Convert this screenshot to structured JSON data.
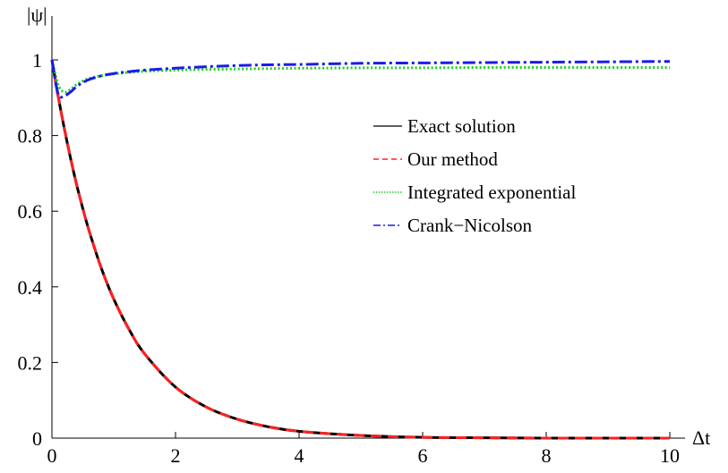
{
  "chart_data": {
    "type": "line",
    "title": "",
    "xlabel": "Δt",
    "ylabel": "|ψ|",
    "xlim": [
      0,
      10
    ],
    "ylim": [
      0,
      1
    ],
    "x_ticks": [
      "0",
      "2",
      "4",
      "6",
      "8",
      "10"
    ],
    "y_ticks": [
      "0",
      "0.2",
      "0.4",
      "0.6",
      "0.8",
      "1"
    ],
    "grid": false,
    "legend_position": "right-center",
    "x": [
      0,
      0.1,
      0.2,
      0.3,
      0.4,
      0.5,
      0.6,
      0.8,
      1.0,
      1.25,
      1.5,
      2.0,
      2.5,
      3.0,
      3.5,
      4.0,
      5.0,
      6.0,
      7.0,
      8.0,
      9.0,
      10.0
    ],
    "series": [
      {
        "name": "Exact solution",
        "color": "#000000",
        "dash": "solid",
        "values": [
          1.0,
          0.905,
          0.819,
          0.741,
          0.67,
          0.607,
          0.549,
          0.449,
          0.368,
          0.287,
          0.223,
          0.135,
          0.082,
          0.05,
          0.03,
          0.018,
          0.007,
          0.002,
          0.001,
          0.0,
          0.0,
          0.0
        ]
      },
      {
        "name": "Our method",
        "color": "#ff2020",
        "dash": "dashed",
        "values": [
          1.0,
          0.905,
          0.819,
          0.741,
          0.67,
          0.607,
          0.549,
          0.449,
          0.368,
          0.287,
          0.223,
          0.135,
          0.082,
          0.05,
          0.03,
          0.018,
          0.007,
          0.002,
          0.001,
          0.0,
          0.0,
          0.0
        ]
      },
      {
        "name": "Integrated exponential",
        "color": "#22cc22",
        "dash": "dotted",
        "values": [
          1.0,
          0.935,
          0.915,
          0.922,
          0.935,
          0.944,
          0.951,
          0.958,
          0.963,
          0.967,
          0.97,
          0.973,
          0.975,
          0.976,
          0.977,
          0.978,
          0.979,
          0.979,
          0.98,
          0.98,
          0.98,
          0.98
        ]
      },
      {
        "name": "Crank−Nicolson",
        "color": "#1a1aee",
        "dash": "dashdot",
        "values": [
          1.0,
          0.91,
          0.905,
          0.915,
          0.93,
          0.94,
          0.948,
          0.958,
          0.964,
          0.969,
          0.973,
          0.978,
          0.982,
          0.985,
          0.987,
          0.988,
          0.991,
          0.992,
          0.993,
          0.994,
          0.995,
          0.996
        ]
      }
    ]
  }
}
